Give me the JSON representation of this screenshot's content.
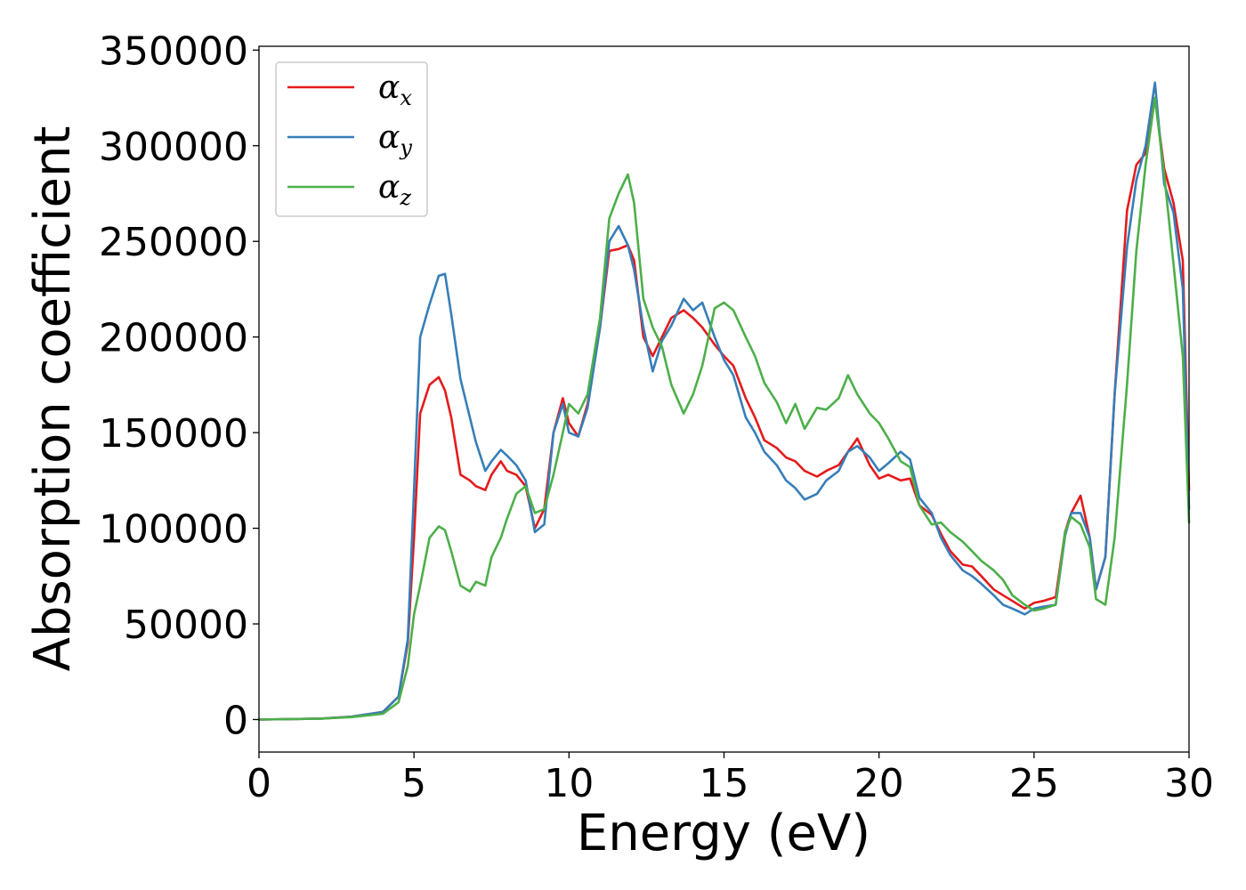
{
  "chart_data": {
    "type": "line",
    "xlabel": "Energy (eV)",
    "ylabel": "Absorption coefficient",
    "xlim": [
      0,
      30
    ],
    "ylim": [
      -17000,
      352000
    ],
    "xticks": [
      "0",
      "5",
      "10",
      "15",
      "20",
      "25",
      "30"
    ],
    "yticks": [
      "0",
      "50000",
      "100000",
      "150000",
      "200000",
      "250000",
      "300000",
      "350000"
    ],
    "grid": false,
    "legend_position": "top-left",
    "x": [
      0,
      2,
      3,
      4,
      4.5,
      4.8,
      5,
      5.2,
      5.5,
      5.8,
      6,
      6.2,
      6.5,
      6.8,
      7,
      7.3,
      7.5,
      7.8,
      8,
      8.3,
      8.6,
      8.9,
      9.2,
      9.5,
      9.8,
      10,
      10.3,
      10.6,
      11,
      11.3,
      11.6,
      11.9,
      12.1,
      12.4,
      12.7,
      13,
      13.3,
      13.7,
      14,
      14.3,
      14.7,
      15,
      15.3,
      15.7,
      16,
      16.3,
      16.7,
      17,
      17.3,
      17.6,
      18,
      18.3,
      18.7,
      19,
      19.3,
      19.7,
      20,
      20.3,
      20.7,
      21,
      21.3,
      21.7,
      22,
      22.3,
      22.7,
      23,
      23.3,
      23.7,
      24,
      24.3,
      24.7,
      25,
      25.3,
      25.7,
      26,
      26.2,
      26.5,
      26.8,
      27,
      27.3,
      27.6,
      28,
      28.3,
      28.6,
      28.9,
      29.2,
      29.5,
      29.8,
      30
    ],
    "series": [
      {
        "name": "α",
        "subscript": "x",
        "color": "#e41a1c",
        "values": [
          0,
          500,
          1500,
          4000,
          12000,
          40000,
          95000,
          160000,
          175000,
          179000,
          172000,
          158000,
          128000,
          125000,
          122000,
          120000,
          128000,
          135000,
          130000,
          128000,
          122000,
          100000,
          110000,
          150000,
          168000,
          155000,
          148000,
          165000,
          205000,
          245000,
          246000,
          248000,
          240000,
          200000,
          190000,
          200000,
          210000,
          214000,
          210000,
          205000,
          196000,
          190000,
          185000,
          168000,
          158000,
          146000,
          142000,
          137000,
          135000,
          130000,
          127000,
          130000,
          133000,
          140000,
          147000,
          133000,
          126000,
          128000,
          125000,
          126000,
          112000,
          107000,
          97000,
          88000,
          81000,
          80000,
          75000,
          68000,
          65000,
          62000,
          58000,
          61000,
          62000,
          64000,
          98000,
          108000,
          117000,
          95000,
          68000,
          85000,
          170000,
          266000,
          290000,
          296000,
          325000,
          288000,
          270000,
          240000,
          120000
        ]
      },
      {
        "name": "α",
        "subscript": "y",
        "color": "#377eb8",
        "values": [
          0,
          500,
          1500,
          4000,
          12000,
          42000,
          120000,
          200000,
          217000,
          232000,
          233000,
          212000,
          178000,
          158000,
          145000,
          130000,
          135000,
          141000,
          138000,
          133000,
          125000,
          98000,
          102000,
          150000,
          165000,
          150000,
          148000,
          163000,
          205000,
          250000,
          258000,
          248000,
          235000,
          205000,
          182000,
          198000,
          206000,
          220000,
          214000,
          218000,
          200000,
          188000,
          180000,
          158000,
          150000,
          140000,
          133000,
          125000,
          121000,
          115000,
          118000,
          125000,
          130000,
          140000,
          143000,
          137000,
          130000,
          134000,
          140000,
          136000,
          116000,
          108000,
          95000,
          86000,
          78000,
          75000,
          71000,
          65000,
          60000,
          58000,
          55000,
          58000,
          59000,
          60000,
          96000,
          108000,
          108000,
          95000,
          68000,
          85000,
          170000,
          247000,
          282000,
          300000,
          333000,
          280000,
          265000,
          225000,
          110000
        ]
      },
      {
        "name": "α",
        "subscript": "z",
        "color": "#4daf4a",
        "values": [
          0,
          500,
          1300,
          3000,
          9000,
          28000,
          55000,
          70000,
          95000,
          101000,
          99000,
          88000,
          70000,
          67000,
          72000,
          70000,
          85000,
          95000,
          105000,
          118000,
          122000,
          108000,
          110000,
          128000,
          150000,
          165000,
          160000,
          170000,
          210000,
          262000,
          275000,
          285000,
          270000,
          220000,
          205000,
          195000,
          175000,
          160000,
          170000,
          185000,
          215000,
          218000,
          214000,
          200000,
          190000,
          176000,
          166000,
          155000,
          165000,
          152000,
          163000,
          162000,
          168000,
          180000,
          170000,
          160000,
          155000,
          147000,
          135000,
          132000,
          112000,
          102000,
          103000,
          98000,
          93000,
          88000,
          83000,
          78000,
          73000,
          65000,
          60000,
          57000,
          58000,
          60000,
          98000,
          106000,
          102000,
          90000,
          63000,
          60000,
          95000,
          175000,
          245000,
          290000,
          325000,
          285000,
          238000,
          190000,
          103000
        ]
      }
    ]
  }
}
